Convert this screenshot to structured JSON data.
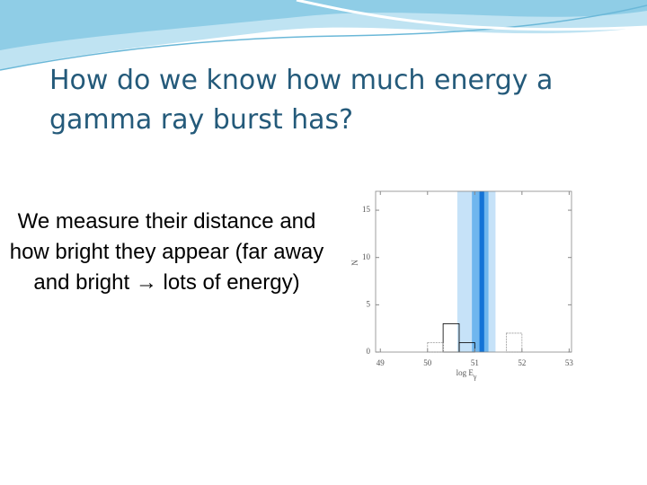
{
  "title": "How do we know how much energy a gamma ray burst has?",
  "body_text": "We measure their distance and how bright they appear (far away and bright → lots of energy)",
  "chart_data": {
    "type": "histogram",
    "x_label": "log E",
    "x_label_subscript": "γ",
    "y_label": "N",
    "bins": [
      50.0,
      50.33,
      50.67,
      51.0,
      51.33,
      51.67,
      52.0
    ],
    "series": [
      {
        "color": "#000000",
        "values": [
          0,
          3,
          1,
          0,
          0,
          0
        ]
      },
      {
        "color": "#999999",
        "values": [
          1,
          0,
          0,
          0,
          0,
          2
        ]
      }
    ],
    "bands": [
      {
        "x": [
          50.63,
          51.44
        ],
        "color": "#c6e2f8"
      },
      {
        "x": [
          50.94,
          51.29
        ],
        "color": "#6fb6ee"
      },
      {
        "x": [
          51.1,
          51.2
        ],
        "color": "#1473d6"
      }
    ],
    "xlim": [
      48.9,
      53.05
    ],
    "ylim": [
      0,
      17
    ],
    "xticks": [
      49,
      50,
      51,
      52,
      53
    ],
    "yticks": [
      0,
      5,
      10,
      15
    ]
  }
}
